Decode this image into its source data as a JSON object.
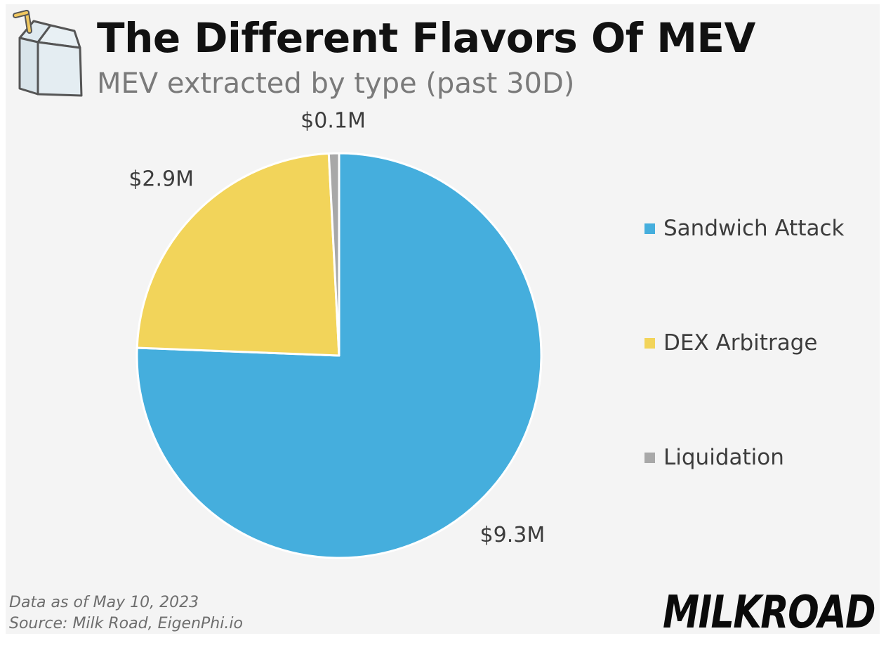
{
  "header": {
    "title": "The Different Flavors Of MEV",
    "subtitle": "MEV extracted by type (past 30D)"
  },
  "logo": {
    "icon": "milk-carton-icon"
  },
  "chart_data": {
    "type": "pie",
    "title": "The Different Flavors Of MEV",
    "subtitle": "MEV extracted by type (past 30D)",
    "unit": "$M",
    "legend_position": "right",
    "slices": [
      {
        "label": "Sandwich Attack",
        "value": 9.3,
        "value_label": "$9.3M",
        "color": "#45aedd"
      },
      {
        "label": "DEX Arbitrage",
        "value": 2.9,
        "value_label": "$2.9M",
        "color": "#f2d45a"
      },
      {
        "label": "Liquidation",
        "value": 0.1,
        "value_label": "$0.1M",
        "color": "#a8a8a8"
      }
    ]
  },
  "footer": {
    "date_note": "Data as of May 10, 2023",
    "source": "Source: Milk Road, EigenPhi.io",
    "brand": "MILKROAD"
  }
}
